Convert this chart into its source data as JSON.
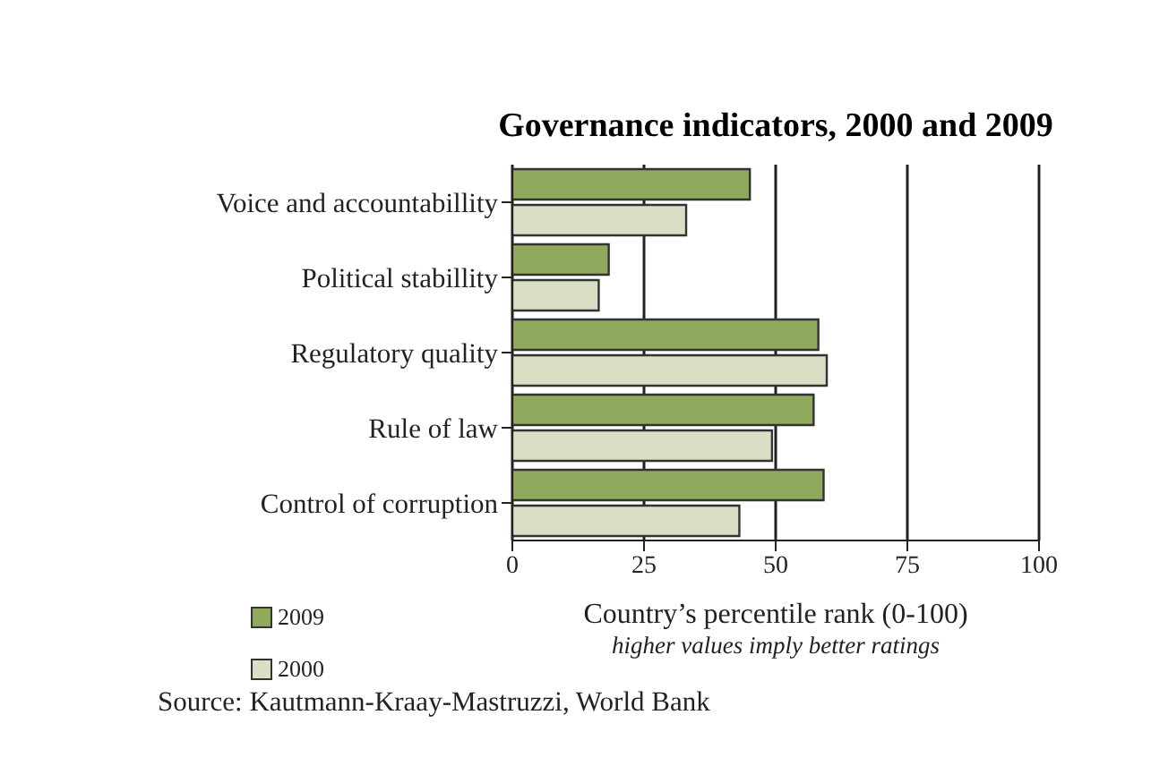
{
  "chart_data": {
    "type": "bar",
    "orientation": "horizontal",
    "title": "Governance indicators, 2000 and 2009",
    "xlabel": "Country’s percentile rank (0-100)",
    "categories": [
      "Voice and accountabillity",
      "Political stabillity",
      "Regulatory quality",
      "Rule of law",
      "Control of corruption"
    ],
    "series": [
      {
        "name": "2009",
        "color": "#8faa5c",
        "values": [
          45.1,
          18.3,
          58.1,
          57.2,
          59.1
        ]
      },
      {
        "name": "2000",
        "color": "#d9dfc5",
        "values": [
          33.0,
          16.4,
          59.7,
          49.3,
          43.1
        ]
      }
    ],
    "xlim": [
      0,
      100
    ],
    "xticks": [
      0,
      25,
      50,
      75,
      100
    ],
    "grid": "x",
    "legend": "bottom left",
    "annotations": [
      "higher values imply better ratings",
      "Source: Kautmann-Kraay-Mastruzzi, World Bank"
    ]
  }
}
